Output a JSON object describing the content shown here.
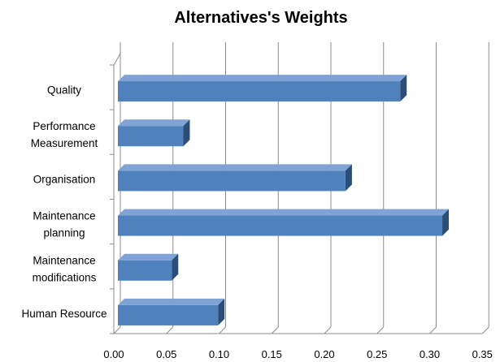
{
  "chart_data": {
    "type": "bar",
    "orientation": "horizontal",
    "title": "Alternatives's Weights",
    "xlabel": "",
    "ylabel": "",
    "categories": [
      [
        "Quality"
      ],
      [
        "Performance",
        "Measurement"
      ],
      [
        "Organisation"
      ],
      [
        "Maintenance",
        "planning"
      ],
      [
        "Maintenance",
        "modifications"
      ],
      [
        "Human Resource"
      ]
    ],
    "values": [
      0.272,
      0.066,
      0.22,
      0.312,
      0.055,
      0.099
    ],
    "xlim": [
      0,
      0.35
    ],
    "xticks": [
      "0.00",
      "0.05",
      "0.10",
      "0.15",
      "0.20",
      "0.25",
      "0.30",
      "0.35"
    ],
    "grid": true,
    "legend": "none",
    "colors": {
      "bar_front": "#4f81bd",
      "bar_top": "#7ea3d4",
      "bar_side": "#2c4d75",
      "grid": "#8c8c8c"
    }
  }
}
